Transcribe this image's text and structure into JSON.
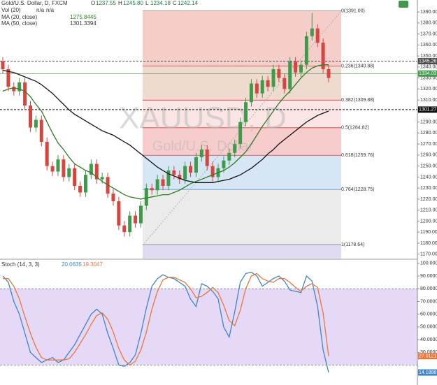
{
  "chart_data": [
    {
      "type": "candlestick",
      "title": "Gold/U.S. Dollar, D, FXCM",
      "ohlc": [
        {
          "key": "O",
          "value": "1237.55"
        },
        {
          "key": "H",
          "value": "1245.80"
        },
        {
          "key": "L",
          "value": "1234.18"
        },
        {
          "key": "C",
          "value": "1242.14"
        }
      ],
      "volume": {
        "name": "Vol (20)",
        "readings": [
          "n/a",
          "n/a"
        ]
      },
      "watermark": [
        "XAUUSD, D",
        "Gold/U.S. Dollar"
      ],
      "up_color": "#3f9b4a",
      "down_color": "#d8453f",
      "opens": [
        1345,
        1338,
        1322,
        1318,
        1326,
        1305,
        1285,
        1292,
        1272,
        1250,
        1245,
        1256,
        1240,
        1248,
        1232,
        1226,
        1242,
        1252,
        1238,
        1240,
        1225,
        1218,
        1196,
        1190,
        1205,
        1198,
        1214,
        1230,
        1228,
        1238,
        1232,
        1246,
        1242,
        1238,
        1250,
        1244,
        1258,
        1265,
        1250,
        1240,
        1248,
        1255,
        1262,
        1270,
        1290,
        1308,
        1325,
        1316,
        1328,
        1322,
        1338,
        1330,
        1320,
        1345,
        1335,
        1342,
        1368,
        1375,
        1362,
        1338
      ],
      "highs": [
        1349,
        1342,
        1326,
        1330,
        1330,
        1309,
        1296,
        1296,
        1276,
        1254,
        1260,
        1260,
        1252,
        1252,
        1236,
        1246,
        1256,
        1256,
        1244,
        1244,
        1229,
        1222,
        1200,
        1209,
        1209,
        1218,
        1234,
        1234,
        1242,
        1242,
        1250,
        1250,
        1246,
        1254,
        1254,
        1262,
        1269,
        1269,
        1254,
        1252,
        1259,
        1266,
        1274,
        1294,
        1312,
        1329,
        1329,
        1332,
        1332,
        1342,
        1342,
        1334,
        1349,
        1349,
        1346,
        1372,
        1389,
        1379,
        1366,
        1342
      ],
      "lows": [
        1334,
        1318,
        1314,
        1314,
        1301,
        1281,
        1281,
        1268,
        1246,
        1241,
        1241,
        1236,
        1236,
        1228,
        1222,
        1222,
        1238,
        1234,
        1234,
        1221,
        1214,
        1192,
        1186,
        1186,
        1194,
        1194,
        1210,
        1224,
        1224,
        1228,
        1228,
        1238,
        1234,
        1234,
        1240,
        1240,
        1254,
        1246,
        1236,
        1236,
        1244,
        1251,
        1258,
        1266,
        1286,
        1304,
        1312,
        1312,
        1318,
        1318,
        1326,
        1316,
        1316,
        1331,
        1331,
        1338,
        1364,
        1358,
        1334,
        1326
      ],
      "closes": [
        1338,
        1322,
        1318,
        1326,
        1305,
        1285,
        1292,
        1272,
        1250,
        1245,
        1256,
        1240,
        1248,
        1232,
        1226,
        1242,
        1252,
        1238,
        1240,
        1225,
        1218,
        1196,
        1190,
        1205,
        1198,
        1214,
        1230,
        1228,
        1238,
        1232,
        1246,
        1242,
        1238,
        1250,
        1244,
        1258,
        1265,
        1250,
        1240,
        1248,
        1255,
        1262,
        1270,
        1290,
        1308,
        1325,
        1316,
        1328,
        1322,
        1338,
        1330,
        1320,
        1345,
        1335,
        1342,
        1368,
        1375,
        1362,
        1338,
        1330
      ],
      "series": [
        {
          "name": "MA (20, close)",
          "reading": "1275.8445",
          "color": "#2e7d1f",
          "values": [
            1318,
            1320,
            1321,
            1320,
            1318,
            1313,
            1306,
            1300,
            1290,
            1280,
            1271,
            1265,
            1258,
            1252,
            1249,
            1246,
            1244,
            1240,
            1236,
            1233,
            1230,
            1227,
            1224,
            1222,
            1221,
            1220,
            1221,
            1222,
            1223,
            1224,
            1224,
            1226,
            1228,
            1231,
            1234,
            1236,
            1238,
            1240,
            1242,
            1244,
            1246,
            1249,
            1253,
            1258,
            1263,
            1270,
            1278,
            1286,
            1293,
            1300,
            1307,
            1313,
            1318,
            1324,
            1330,
            1335,
            1339,
            1341,
            1342,
            1342
          ]
        },
        {
          "name": "MA (50, close)",
          "reading": "1301.3394",
          "color": "#111111",
          "values": [
            1337,
            1336,
            1335,
            1333,
            1331,
            1329,
            1327,
            1324,
            1320,
            1316,
            1311,
            1306,
            1301,
            1297,
            1294,
            1291,
            1288,
            1285,
            1282,
            1280,
            1278,
            1275,
            1272,
            1269,
            1265,
            1261,
            1257,
            1253,
            1249,
            1246,
            1243,
            1241,
            1239,
            1237,
            1236,
            1235,
            1235,
            1235,
            1235,
            1236,
            1237,
            1238,
            1240,
            1242,
            1245,
            1248,
            1252,
            1256,
            1261,
            1265,
            1270,
            1274,
            1278,
            1282,
            1286,
            1290,
            1293,
            1296,
            1298,
            1300
          ]
        }
      ],
      "fib_levels": [
        {
          "label": "0(1391.00)",
          "value": 1391.0,
          "color": "#f3c6c1",
          "line_color": "#888888"
        },
        {
          "label": "0.236(1340.88)",
          "value": 1340.88,
          "color": "#ecd3c8",
          "line_color": "#d33c3c"
        },
        {
          "label": "0.382(1309.88)",
          "value": 1309.88,
          "color": "#f9dfdf",
          "line_color": "#d33c3c"
        },
        {
          "label": "0.5(1284.82)",
          "value": 1284.82,
          "color": "#f6c3c3",
          "line_color": "#d33c3c"
        },
        {
          "label": "0.618(1259.76)",
          "value": 1259.76,
          "color": "#cfe2f3",
          "line_color": "#d33c3c"
        },
        {
          "label": "0.764(1228.75)",
          "value": 1228.75,
          "color": "#e8e8e8",
          "line_color": "#3d85c6"
        },
        {
          "label": "1(1178.64)",
          "value": 1178.64,
          "color": "#dad3f0",
          "line_color": "#888888"
        }
      ],
      "price_lines": [
        {
          "value": 1345.26,
          "color": "#4a4a4a",
          "dashed": true
        },
        {
          "value": 1334.03,
          "color": "#3f9b4a",
          "dashed": false
        },
        {
          "value": 1301.27,
          "color": "#111111",
          "dashed": true
        }
      ],
      "ylim": [
        1166,
        1394.5
      ],
      "yticks": [
        {
          "value": 1390,
          "label": "1390.00"
        },
        {
          "value": 1380,
          "label": "1380.00"
        },
        {
          "value": 1370,
          "label": "1370.00"
        },
        {
          "value": 1360,
          "label": "1360.00"
        },
        {
          "value": 1350,
          "label": "1350.00"
        },
        {
          "value": 1340,
          "label": "1340.00"
        },
        {
          "value": 1330,
          "label": "1330.00"
        },
        {
          "value": 1320,
          "label": "1320.00"
        },
        {
          "value": 1310,
          "label": "1310.00"
        },
        {
          "value": 1300,
          "label": "1300.00"
        },
        {
          "value": 1290,
          "label": "1290.00"
        },
        {
          "value": 1280,
          "label": "1280.00"
        },
        {
          "value": 1270,
          "label": "1270.00"
        },
        {
          "value": 1260,
          "label": "1260.00"
        },
        {
          "value": 1250,
          "label": "1250.00"
        },
        {
          "value": 1240,
          "label": "1240.00"
        },
        {
          "value": 1230,
          "label": "1230.00"
        },
        {
          "value": 1220,
          "label": "1220.00"
        },
        {
          "value": 1210,
          "label": "1210.00"
        },
        {
          "value": 1200,
          "label": "1200.00"
        },
        {
          "value": 1190,
          "label": "1190.00"
        },
        {
          "value": 1180,
          "label": "1180.00"
        },
        {
          "value": 1170,
          "label": "1170.00"
        }
      ]
    },
    {
      "type": "line",
      "title": "Stoch (14, 3, 3)",
      "series": [
        {
          "reading": "20.0635",
          "color": "#3d85c6",
          "values": [
            90,
            85,
            70,
            60,
            45,
            30,
            26,
            22,
            24,
            26,
            22,
            24,
            30,
            36,
            44,
            52,
            60,
            64,
            60,
            45,
            33,
            20,
            19,
            22,
            28,
            45,
            65,
            82,
            88,
            91,
            89,
            88,
            85,
            82,
            72,
            66,
            84,
            82,
            78,
            72,
            50,
            42,
            62,
            85,
            92,
            93,
            90,
            82,
            85,
            88,
            90,
            86,
            79,
            78,
            77,
            90,
            86,
            66,
            32,
            14.1888
          ]
        },
        {
          "reading": "19.3047",
          "color": "#e8773a",
          "values": [
            88,
            88,
            82,
            72,
            58,
            45,
            34,
            26,
            24,
            24,
            24,
            24,
            25,
            30,
            37,
            44,
            52,
            59,
            61,
            56,
            46,
            33,
            24,
            20,
            23,
            32,
            46,
            64,
            78,
            87,
            89,
            89,
            87,
            85,
            80,
            73,
            74,
            77,
            81,
            77,
            67,
            55,
            51,
            63,
            80,
            90,
            92,
            88,
            86,
            85,
            88,
            88,
            85,
            81,
            78,
            82,
            84,
            81,
            61,
            27.0121
          ]
        }
      ],
      "band": [
        20,
        80
      ],
      "band_color": "#e6d9f7",
      "ylim": [
        6,
        101
      ],
      "yticks": [
        {
          "value": 100,
          "label": "100.0000"
        },
        {
          "value": 90,
          "label": "90.0000"
        },
        {
          "value": 80,
          "label": "80.0000"
        },
        {
          "value": 70,
          "label": "70.0000"
        },
        {
          "value": 60,
          "label": "60.0000"
        },
        {
          "value": 50,
          "label": "50.0000"
        },
        {
          "value": 40,
          "label": "40.0000"
        },
        {
          "value": 30,
          "label": "30.0000"
        }
      ]
    }
  ]
}
